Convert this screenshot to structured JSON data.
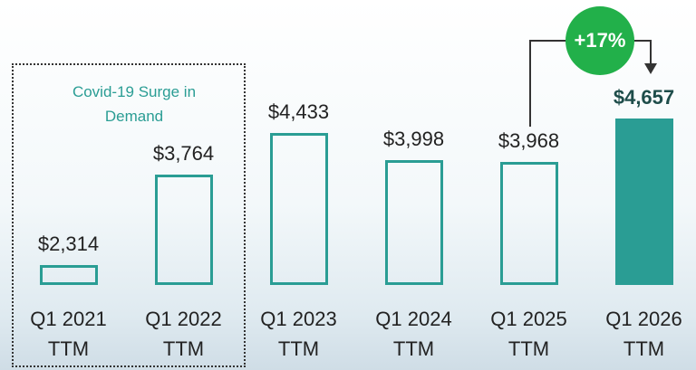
{
  "chart_data": {
    "type": "bar",
    "categories": [
      "Q1 2021 TTM",
      "Q1 2022 TTM",
      "Q1 2023 TTM",
      "Q1 2024 TTM",
      "Q1 2025 TTM",
      "Q1 2026 TTM"
    ],
    "values": [
      2314,
      3764,
      4433,
      3998,
      3968,
      4657
    ],
    "value_labels": [
      "$2,314",
      "$3,764",
      "$4,433",
      "$3,998",
      "$3,968",
      "$4,657"
    ],
    "color": "#2a9d94",
    "fills": [
      "none",
      "none",
      "none",
      "none",
      "none",
      "#2a9d94"
    ],
    "ylim": [
      2000,
      6500
    ],
    "annotations": [
      "Covid-19 Surge in Demand",
      "+17%"
    ]
  }
}
